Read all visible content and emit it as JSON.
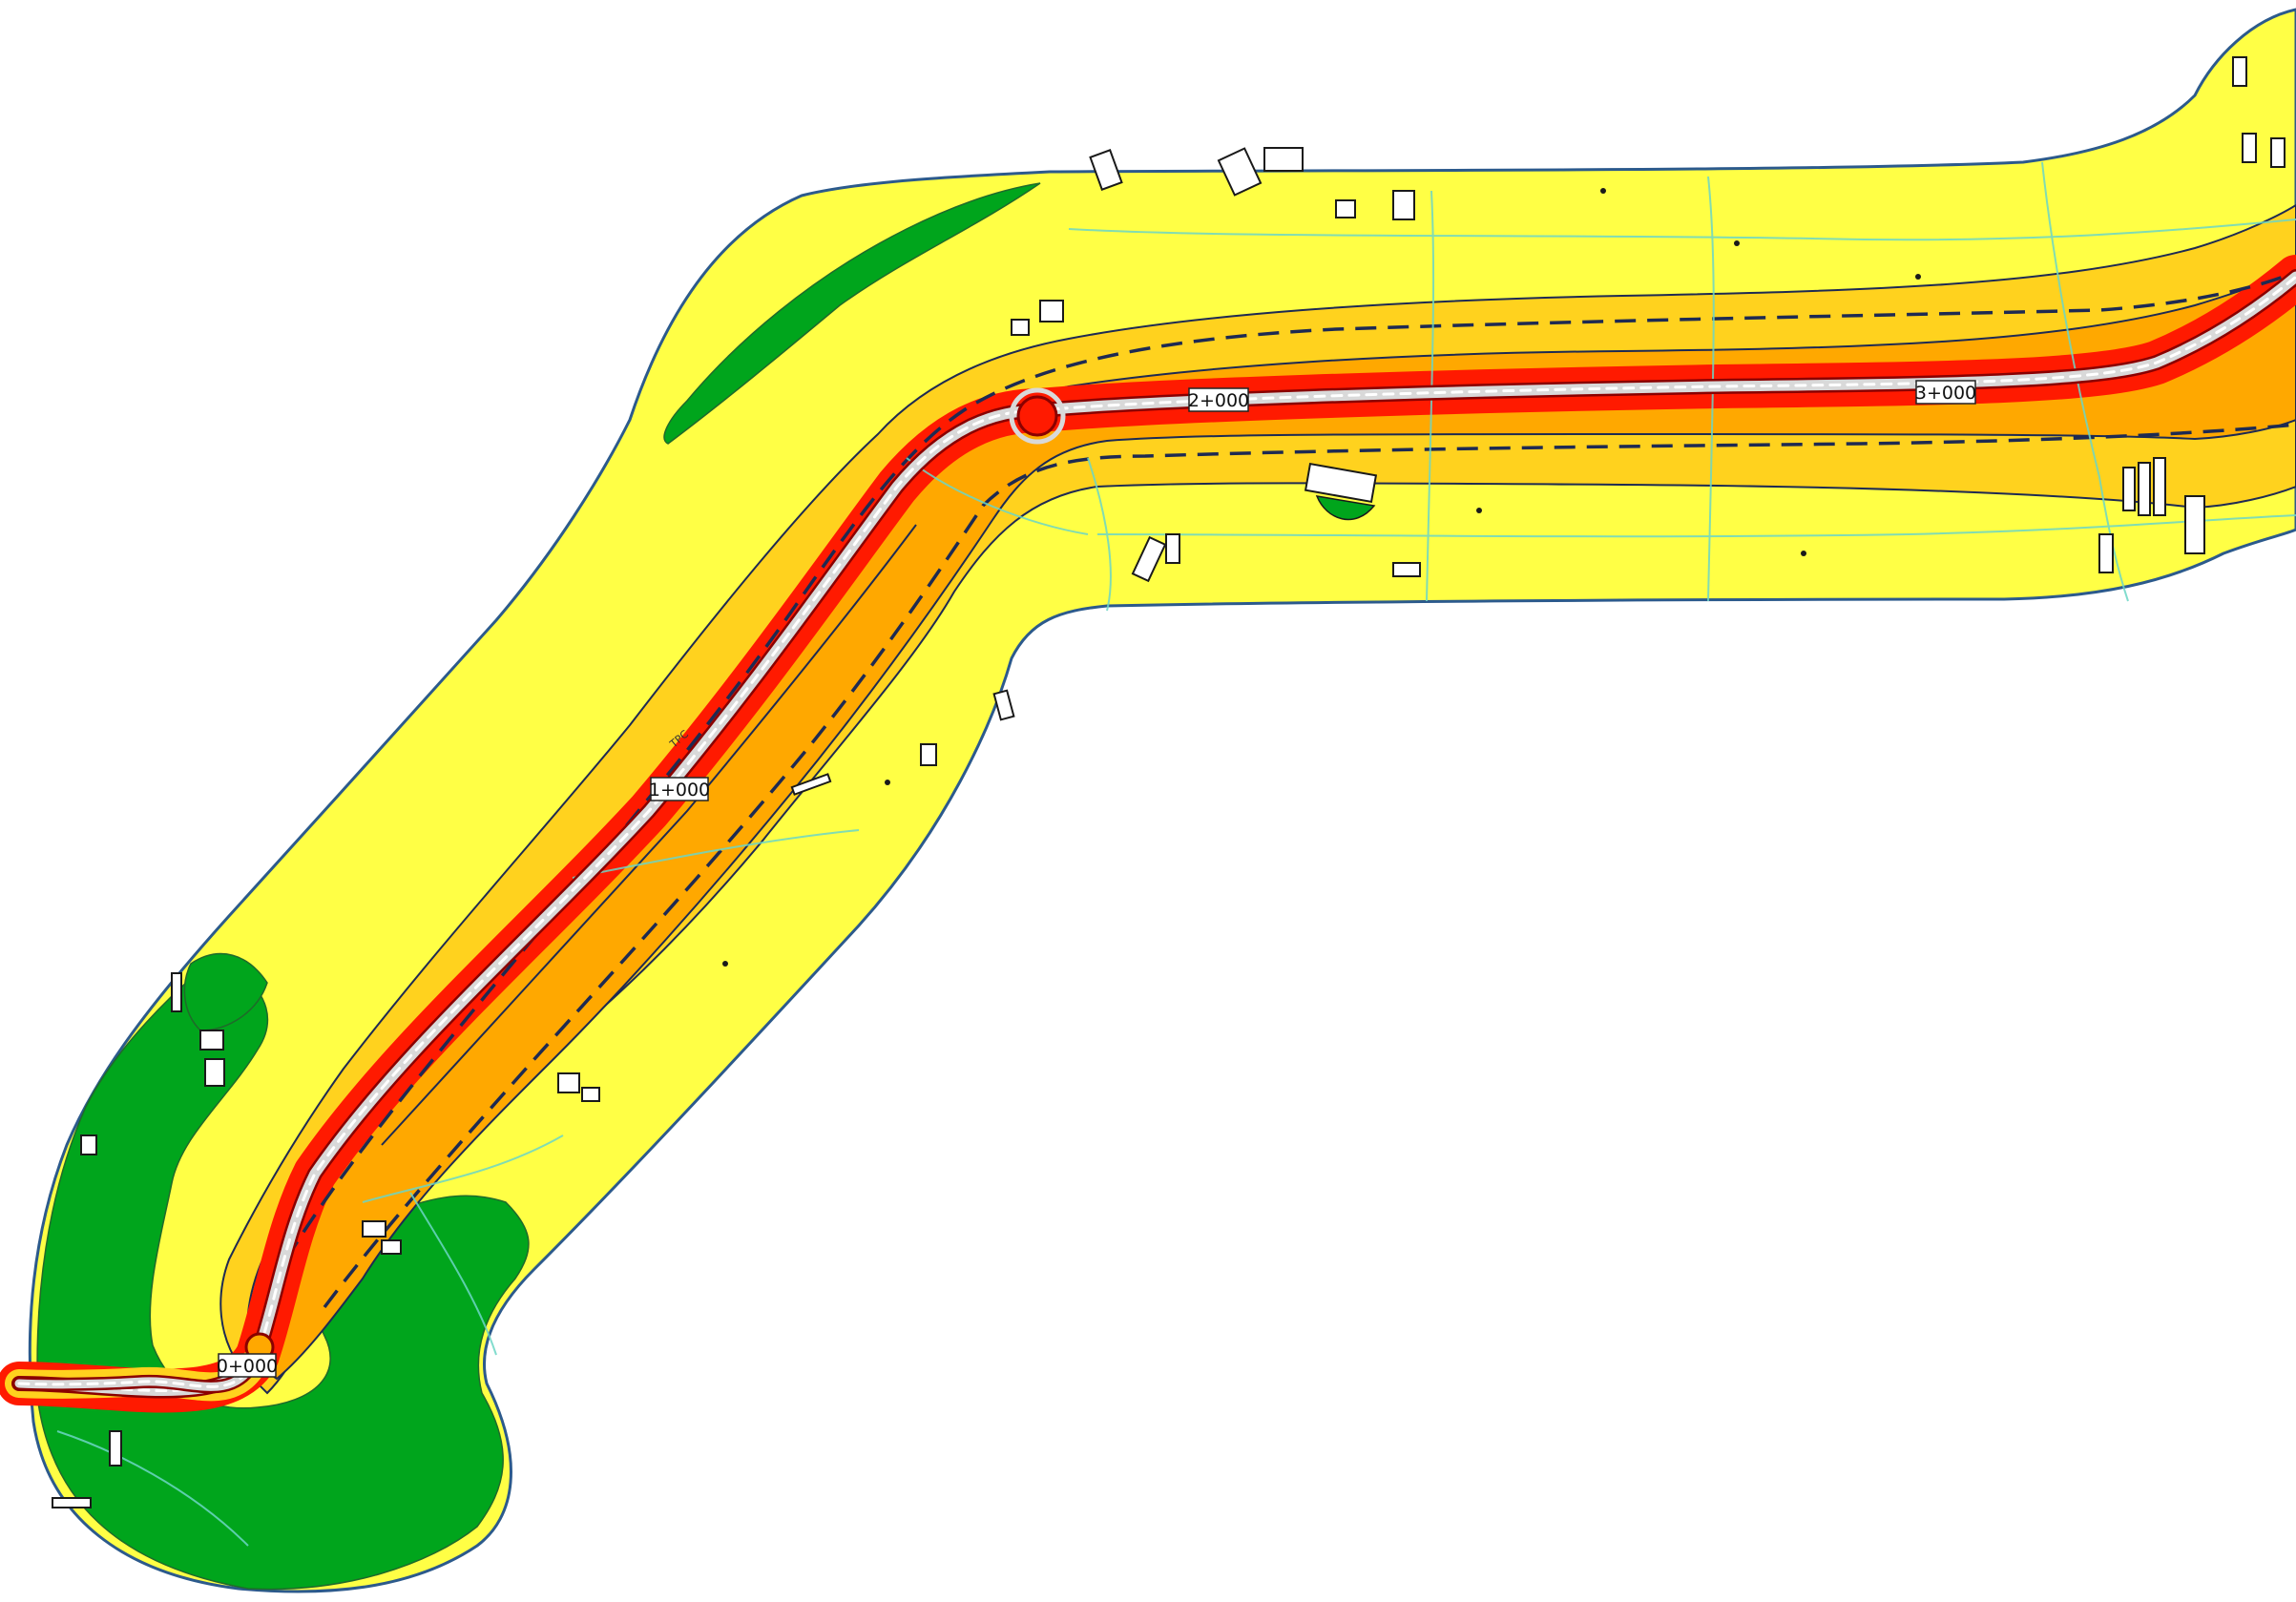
{
  "map": {
    "chainages": [
      "0+000",
      "1+000",
      "2+000",
      "3+000"
    ],
    "small_annotation": "TPC",
    "colors": {
      "background": "#ffffff",
      "zone_green": "#00a51c",
      "zone_yellow": "#ffff45",
      "zone_light_orange": "#ffd21e",
      "zone_orange": "#ffa800",
      "zone_red": "#ff1a00",
      "boundary": "#2c5a8c",
      "contour": "#1e2a52",
      "terrain_lines": "#6cd6c6",
      "road_casing": "#8a0000",
      "road_fill": "#d9d9d9"
    }
  }
}
